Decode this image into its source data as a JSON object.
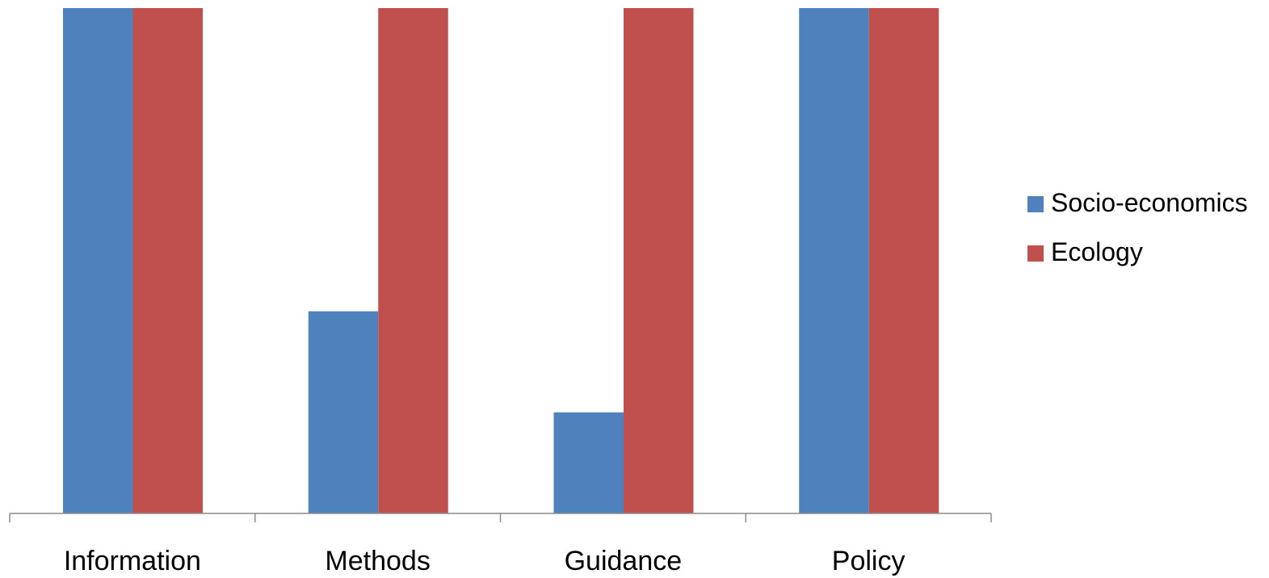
{
  "chart_data": {
    "type": "bar",
    "categories": [
      "Information",
      "Methods",
      "Guidance",
      "Policy"
    ],
    "series": [
      {
        "name": "Socio-economics",
        "color": "#4f81bd",
        "values": [
          5,
          2,
          1,
          5
        ]
      },
      {
        "name": "Ecology",
        "color": "#c0504d",
        "values": [
          5,
          5,
          5,
          5
        ]
      }
    ],
    "ylim": [
      0,
      5
    ],
    "grid": false,
    "legend_position": "right"
  }
}
